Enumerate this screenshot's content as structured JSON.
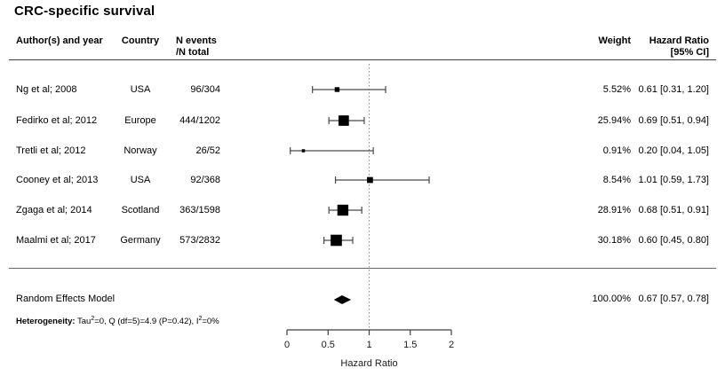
{
  "title": "CRC-specific survival",
  "columns": {
    "author": "Author(s) and year",
    "country": "Country",
    "n_events_line1": "N events",
    "n_events_line2": "/N total",
    "weight": "Weight",
    "hr_line1": "Hazard Ratio",
    "hr_line2": "[95% CI]"
  },
  "studies": [
    {
      "author": "Ng et al; 2008",
      "country": "USA",
      "n_events": "96/304",
      "weight": "5.52%",
      "hr_ci": "0.61 [0.31, 1.20]"
    },
    {
      "author": "Fedirko et al; 2012",
      "country": "Europe",
      "n_events": "444/1202",
      "weight": "25.94%",
      "hr_ci": "0.69 [0.51, 0.94]"
    },
    {
      "author": "Tretli et al; 2012",
      "country": "Norway",
      "n_events": "26/52",
      "weight": "0.91%",
      "hr_ci": "0.20 [0.04, 1.05]"
    },
    {
      "author": "Cooney et al; 2013",
      "country": "USA",
      "n_events": "92/368",
      "weight": "8.54%",
      "hr_ci": "1.01 [0.59, 1.73]"
    },
    {
      "author": "Zgaga et al; 2014",
      "country": "Scotland",
      "n_events": "363/1598",
      "weight": "28.91%",
      "hr_ci": "0.68 [0.51, 0.91]"
    },
    {
      "author": "Maalmi et al; 2017",
      "country": "Germany",
      "n_events": "573/2832",
      "weight": "30.18%",
      "hr_ci": "0.60 [0.45, 0.80]"
    }
  ],
  "summary": {
    "label": "Random Effects Model",
    "weight": "100.00%",
    "hr_ci": "0.67 [0.57, 0.78]"
  },
  "heterogeneity": {
    "label": "Heterogeneity:",
    "t1": " Tau",
    "s1": "2",
    "t2": "=0, Q (df=5)=4.9 (P=0.42), I",
    "s2": "2",
    "t3": "=0%"
  },
  "chart_data": {
    "type": "forest",
    "title": "CRC-specific survival",
    "xlabel": "Hazard Ratio",
    "xlim": [
      0,
      2
    ],
    "x_ticks": [
      0,
      0.5,
      1,
      1.5,
      2
    ],
    "reference_line": 1,
    "studies": [
      {
        "name": "Ng et al; 2008",
        "hr": 0.61,
        "ci_low": 0.31,
        "ci_high": 1.2,
        "weight_pct": 5.52
      },
      {
        "name": "Fedirko et al; 2012",
        "hr": 0.69,
        "ci_low": 0.51,
        "ci_high": 0.94,
        "weight_pct": 25.94
      },
      {
        "name": "Tretli et al; 2012",
        "hr": 0.2,
        "ci_low": 0.04,
        "ci_high": 1.05,
        "weight_pct": 0.91
      },
      {
        "name": "Cooney et al; 2013",
        "hr": 1.01,
        "ci_low": 0.59,
        "ci_high": 1.73,
        "weight_pct": 8.54
      },
      {
        "name": "Zgaga et al; 2014",
        "hr": 0.68,
        "ci_low": 0.51,
        "ci_high": 0.91,
        "weight_pct": 28.91
      },
      {
        "name": "Maalmi et al; 2017",
        "hr": 0.6,
        "ci_low": 0.45,
        "ci_high": 0.8,
        "weight_pct": 30.18
      }
    ],
    "summary": {
      "name": "Random Effects Model",
      "hr": 0.67,
      "ci_low": 0.57,
      "ci_high": 0.78,
      "weight_pct": 100.0
    },
    "heterogeneity_text": "Heterogeneity: Tau2=0, Q (df=5)=4.9 (P=0.42), I2=0%"
  }
}
